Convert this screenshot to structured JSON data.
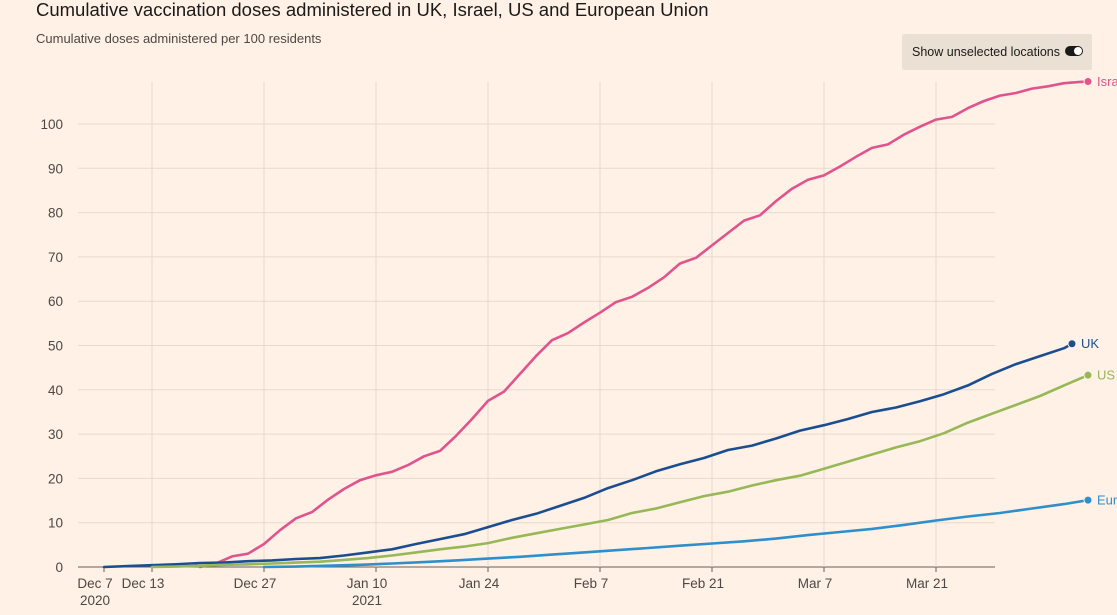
{
  "header": {
    "title": "Cumulative vaccination doses administered in UK, Israel, US and European Union",
    "subtitle": "Cumulative doses administered per 100 residents"
  },
  "toggle": {
    "label": "Show unselected locations",
    "state": "on"
  },
  "chart_data": {
    "type": "line",
    "title": "Cumulative vaccination doses administered in UK, Israel, US and European Union",
    "ylabel": "Cumulative doses administered per 100 residents",
    "xlabel": "",
    "y_ticks": [
      0,
      10,
      20,
      30,
      40,
      50,
      60,
      70,
      80,
      90,
      100
    ],
    "ylim": [
      0,
      110
    ],
    "x_axis_start": "2020-12-07",
    "x_ticks": [
      {
        "date": "2020-12-07",
        "label": "Dec 7",
        "sublabel": "2020"
      },
      {
        "date": "2020-12-13",
        "label": "Dec 13",
        "sublabel": ""
      },
      {
        "date": "2020-12-27",
        "label": "Dec 27",
        "sublabel": ""
      },
      {
        "date": "2021-01-10",
        "label": "Jan 10",
        "sublabel": "2021"
      },
      {
        "date": "2021-01-24",
        "label": "Jan 24",
        "sublabel": ""
      },
      {
        "date": "2021-02-07",
        "label": "Feb 7",
        "sublabel": ""
      },
      {
        "date": "2021-02-21",
        "label": "Feb 21",
        "sublabel": ""
      },
      {
        "date": "2021-03-07",
        "label": "Mar 7",
        "sublabel": ""
      },
      {
        "date": "2021-03-21",
        "label": "Mar 21",
        "sublabel": ""
      }
    ],
    "grid": true,
    "legend": "direct labels at line ends",
    "series": [
      {
        "name": "Israel",
        "color": "#e0548e",
        "points": [
          [
            "2020-12-19",
            0
          ],
          [
            "2020-12-21",
            0.8
          ],
          [
            "2020-12-23",
            2.4
          ],
          [
            "2020-12-25",
            3.0
          ],
          [
            "2020-12-27",
            5.2
          ],
          [
            "2020-12-29",
            8.3
          ],
          [
            "2020-12-31",
            11.0
          ],
          [
            "2021-01-02",
            12.4
          ],
          [
            "2021-01-04",
            15.2
          ],
          [
            "2021-01-06",
            17.6
          ],
          [
            "2021-01-08",
            19.6
          ],
          [
            "2021-01-10",
            20.7
          ],
          [
            "2021-01-12",
            21.5
          ],
          [
            "2021-01-14",
            23.0
          ],
          [
            "2021-01-16",
            25.0
          ],
          [
            "2021-01-18",
            26.2
          ],
          [
            "2021-01-20",
            29.6
          ],
          [
            "2021-01-22",
            33.4
          ],
          [
            "2021-01-24",
            37.5
          ],
          [
            "2021-01-26",
            39.6
          ],
          [
            "2021-01-28",
            43.6
          ],
          [
            "2021-01-30",
            47.6
          ],
          [
            "2021-02-01",
            51.2
          ],
          [
            "2021-02-03",
            52.8
          ],
          [
            "2021-02-05",
            55.2
          ],
          [
            "2021-02-07",
            57.4
          ],
          [
            "2021-02-09",
            59.8
          ],
          [
            "2021-02-11",
            61.0
          ],
          [
            "2021-02-13",
            63.0
          ],
          [
            "2021-02-15",
            65.4
          ],
          [
            "2021-02-17",
            68.5
          ],
          [
            "2021-02-19",
            69.8
          ],
          [
            "2021-02-21",
            72.6
          ],
          [
            "2021-02-23",
            75.4
          ],
          [
            "2021-02-25",
            78.2
          ],
          [
            "2021-02-27",
            79.4
          ],
          [
            "2021-03-01",
            82.6
          ],
          [
            "2021-03-03",
            85.4
          ],
          [
            "2021-03-05",
            87.4
          ],
          [
            "2021-03-07",
            88.4
          ],
          [
            "2021-03-09",
            90.4
          ],
          [
            "2021-03-11",
            92.6
          ],
          [
            "2021-03-13",
            94.6
          ],
          [
            "2021-03-15",
            95.4
          ],
          [
            "2021-03-17",
            97.6
          ],
          [
            "2021-03-19",
            99.4
          ],
          [
            "2021-03-21",
            101.0
          ],
          [
            "2021-03-23",
            101.6
          ],
          [
            "2021-03-25",
            103.6
          ],
          [
            "2021-03-27",
            105.2
          ],
          [
            "2021-03-29",
            106.4
          ],
          [
            "2021-03-31",
            107.0
          ],
          [
            "2021-04-02",
            108.0
          ],
          [
            "2021-04-04",
            108.5
          ],
          [
            "2021-04-06",
            109.2
          ],
          [
            "2021-04-08",
            109.5
          ],
          [
            "2021-04-09",
            109.6
          ]
        ]
      },
      {
        "name": "UK",
        "color": "#1b4e91",
        "points": [
          [
            "2020-12-07",
            0
          ],
          [
            "2020-12-10",
            0.2
          ],
          [
            "2020-12-13",
            0.4
          ],
          [
            "2020-12-16",
            0.6
          ],
          [
            "2020-12-19",
            0.9
          ],
          [
            "2020-12-22",
            1.0
          ],
          [
            "2020-12-25",
            1.3
          ],
          [
            "2020-12-28",
            1.5
          ],
          [
            "2020-12-31",
            1.8
          ],
          [
            "2021-01-03",
            2.0
          ],
          [
            "2021-01-06",
            2.6
          ],
          [
            "2021-01-09",
            3.3
          ],
          [
            "2021-01-12",
            4.0
          ],
          [
            "2021-01-15",
            5.2
          ],
          [
            "2021-01-18",
            6.3
          ],
          [
            "2021-01-21",
            7.4
          ],
          [
            "2021-01-24",
            9.0
          ],
          [
            "2021-01-27",
            10.6
          ],
          [
            "2021-01-30",
            12.0
          ],
          [
            "2021-02-02",
            13.8
          ],
          [
            "2021-02-05",
            15.6
          ],
          [
            "2021-02-08",
            17.8
          ],
          [
            "2021-02-11",
            19.6
          ],
          [
            "2021-02-14",
            21.6
          ],
          [
            "2021-02-17",
            23.2
          ],
          [
            "2021-02-20",
            24.6
          ],
          [
            "2021-02-23",
            26.4
          ],
          [
            "2021-02-26",
            27.4
          ],
          [
            "2021-03-01",
            29.0
          ],
          [
            "2021-03-04",
            30.8
          ],
          [
            "2021-03-07",
            32.0
          ],
          [
            "2021-03-10",
            33.4
          ],
          [
            "2021-03-13",
            35.0
          ],
          [
            "2021-03-16",
            36.0
          ],
          [
            "2021-03-19",
            37.4
          ],
          [
            "2021-03-22",
            39.0
          ],
          [
            "2021-03-25",
            41.0
          ],
          [
            "2021-03-28",
            43.6
          ],
          [
            "2021-03-31",
            45.8
          ],
          [
            "2021-04-03",
            47.6
          ],
          [
            "2021-04-06",
            49.4
          ],
          [
            "2021-04-07",
            50.4
          ]
        ]
      },
      {
        "name": "US",
        "color": "#96b857",
        "points": [
          [
            "2020-12-13",
            0
          ],
          [
            "2020-12-16",
            0.1
          ],
          [
            "2020-12-19",
            0.3
          ],
          [
            "2020-12-22",
            0.5
          ],
          [
            "2020-12-25",
            0.6
          ],
          [
            "2020-12-28",
            0.8
          ],
          [
            "2020-12-31",
            1.0
          ],
          [
            "2021-01-03",
            1.2
          ],
          [
            "2021-01-06",
            1.6
          ],
          [
            "2021-01-09",
            2.0
          ],
          [
            "2021-01-12",
            2.6
          ],
          [
            "2021-01-15",
            3.3
          ],
          [
            "2021-01-18",
            4.0
          ],
          [
            "2021-01-21",
            4.6
          ],
          [
            "2021-01-24",
            5.4
          ],
          [
            "2021-01-27",
            6.6
          ],
          [
            "2021-01-30",
            7.6
          ],
          [
            "2021-02-02",
            8.6
          ],
          [
            "2021-02-05",
            9.6
          ],
          [
            "2021-02-08",
            10.6
          ],
          [
            "2021-02-11",
            12.2
          ],
          [
            "2021-02-14",
            13.2
          ],
          [
            "2021-02-17",
            14.6
          ],
          [
            "2021-02-20",
            16.0
          ],
          [
            "2021-02-23",
            17.0
          ],
          [
            "2021-02-26",
            18.4
          ],
          [
            "2021-03-01",
            19.6
          ],
          [
            "2021-03-04",
            20.6
          ],
          [
            "2021-03-07",
            22.2
          ],
          [
            "2021-03-10",
            23.8
          ],
          [
            "2021-03-13",
            25.4
          ],
          [
            "2021-03-16",
            27.0
          ],
          [
            "2021-03-19",
            28.4
          ],
          [
            "2021-03-22",
            30.2
          ],
          [
            "2021-03-25",
            32.6
          ],
          [
            "2021-03-28",
            34.6
          ],
          [
            "2021-03-31",
            36.6
          ],
          [
            "2021-04-03",
            38.6
          ],
          [
            "2021-04-06",
            41.0
          ],
          [
            "2021-04-09",
            43.3
          ]
        ]
      },
      {
        "name": "European Union",
        "color": "#2d8fcc",
        "points": [
          [
            "2020-12-27",
            0
          ],
          [
            "2020-12-31",
            0.1
          ],
          [
            "2021-01-04",
            0.3
          ],
          [
            "2021-01-08",
            0.5
          ],
          [
            "2021-01-12",
            0.8
          ],
          [
            "2021-01-16",
            1.1
          ],
          [
            "2021-01-20",
            1.5
          ],
          [
            "2021-01-24",
            1.9
          ],
          [
            "2021-01-28",
            2.3
          ],
          [
            "2021-02-01",
            2.8
          ],
          [
            "2021-02-05",
            3.3
          ],
          [
            "2021-02-09",
            3.8
          ],
          [
            "2021-02-13",
            4.3
          ],
          [
            "2021-02-17",
            4.8
          ],
          [
            "2021-02-21",
            5.3
          ],
          [
            "2021-02-25",
            5.8
          ],
          [
            "2021-03-01",
            6.4
          ],
          [
            "2021-03-05",
            7.2
          ],
          [
            "2021-03-09",
            7.9
          ],
          [
            "2021-03-13",
            8.6
          ],
          [
            "2021-03-17",
            9.5
          ],
          [
            "2021-03-21",
            10.5
          ],
          [
            "2021-03-25",
            11.4
          ],
          [
            "2021-03-29",
            12.2
          ],
          [
            "2021-04-02",
            13.2
          ],
          [
            "2021-04-06",
            14.2
          ],
          [
            "2021-04-09",
            15.1
          ]
        ]
      }
    ]
  }
}
